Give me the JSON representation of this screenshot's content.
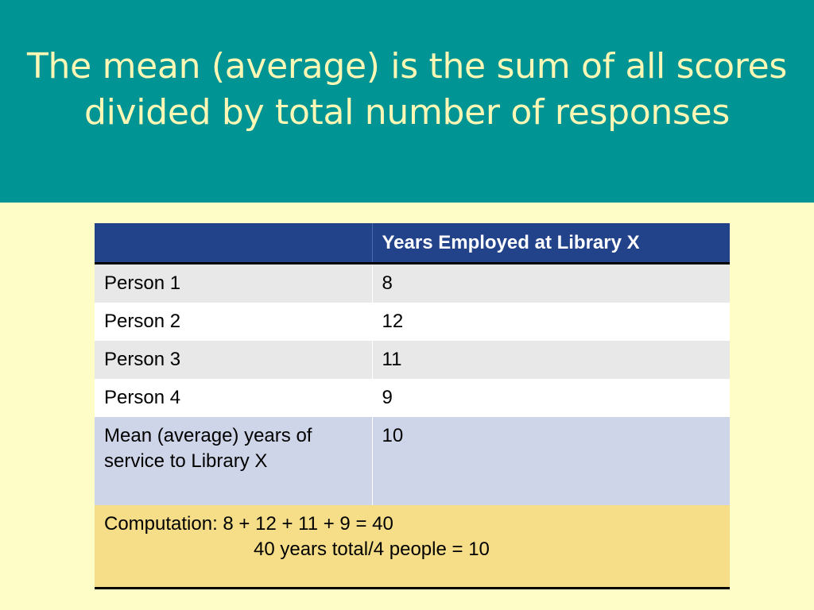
{
  "slide": {
    "title": "The mean (average) is the sum of all scores\ndivided by total number of responses"
  },
  "table": {
    "header": [
      "",
      "Years Employed at Library X"
    ],
    "rows": [
      {
        "label": "Person 1",
        "value": "8"
      },
      {
        "label": "Person 2",
        "value": "12"
      },
      {
        "label": "Person 3",
        "value": "11"
      },
      {
        "label": "Person 4",
        "value": "9"
      }
    ],
    "mean": {
      "label": "Mean (average) years of service to Library X",
      "value": "10"
    },
    "computation": {
      "line1": "Computation: 8 + 12 + 11 + 9 = 40",
      "line2": "40 years total/4 people = 10"
    }
  },
  "colors": {
    "title_band": "#009494",
    "title_text": "#fcf7b4",
    "slide_background": "#fefdc8",
    "header_fill": "#22428a",
    "mean_fill": "#cfd5e8",
    "computation_fill": "#f6de88"
  }
}
